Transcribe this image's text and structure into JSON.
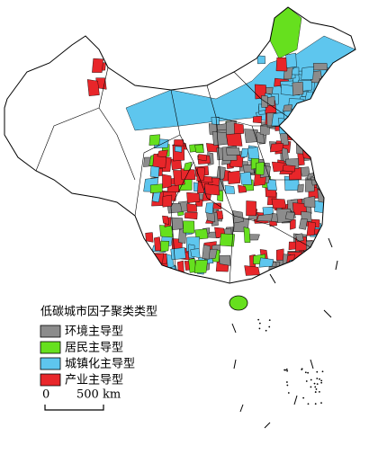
{
  "legend": {
    "title": "低碳城市因子聚类类型",
    "items": [
      {
        "label": "环境主导型",
        "color": "#8c8c8c"
      },
      {
        "label": "居民主导型",
        "color": "#66e01e"
      },
      {
        "label": "城镇化主导型",
        "color": "#5ec6ee"
      },
      {
        "label": "产业主导型",
        "color": "#e8262a"
      }
    ]
  },
  "scale_bar": {
    "labels": [
      "0",
      "500 km"
    ]
  }
}
